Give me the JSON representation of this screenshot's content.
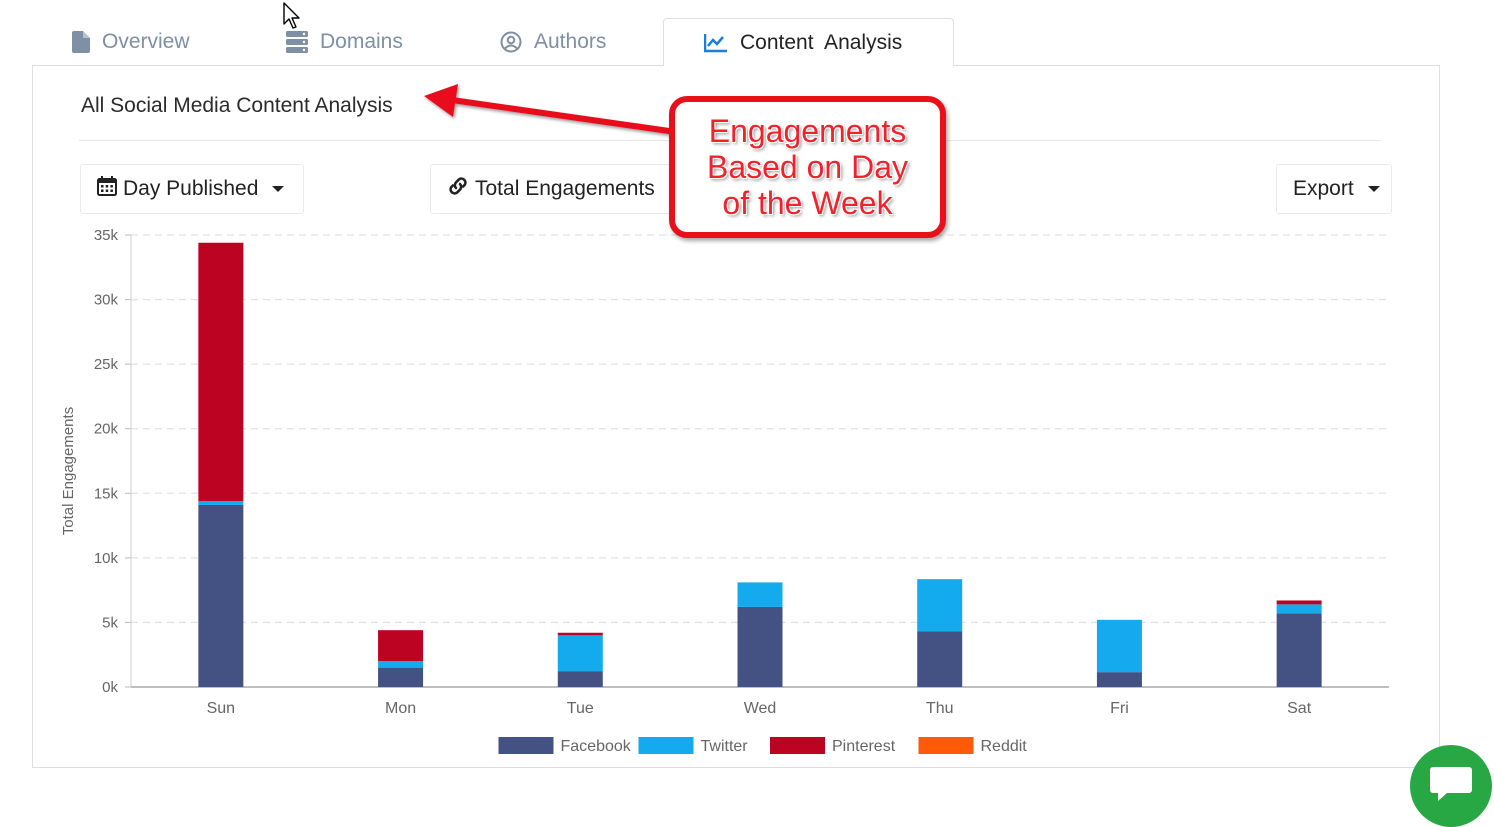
{
  "tabs": [
    {
      "label": "Overview",
      "icon": "file-icon",
      "active": false
    },
    {
      "label": "Domains",
      "icon": "server-icon",
      "active": false
    },
    {
      "label": "Authors",
      "icon": "user-circle-icon",
      "active": false
    },
    {
      "label": "Content  Analysis",
      "icon": "line-chart-icon",
      "active": true
    }
  ],
  "panel": {
    "title": "All Social Media Content Analysis",
    "group_by_button": "Day Published",
    "metric_button": "Total Engagements",
    "export_button": "Export"
  },
  "annotation": {
    "line1": "Engagements",
    "line2": "Based on Day",
    "line3": "of the Week",
    "color": "#e8101a"
  },
  "chart_data": {
    "type": "bar",
    "stacked": true,
    "categories": [
      "Sun",
      "Mon",
      "Tue",
      "Wed",
      "Thu",
      "Fri",
      "Sat"
    ],
    "series": [
      {
        "name": "Facebook",
        "color": "#435283",
        "values": [
          14100,
          1500,
          1200,
          6200,
          4300,
          1150,
          5700
        ]
      },
      {
        "name": "Twitter",
        "color": "#13aaee",
        "values": [
          300,
          500,
          2800,
          1900,
          4050,
          4050,
          700
        ]
      },
      {
        "name": "Pinterest",
        "color": "#bd0322",
        "values": [
          20000,
          2400,
          200,
          0,
          0,
          0,
          300
        ]
      },
      {
        "name": "Reddit",
        "color": "#ff5a08",
        "values": [
          0,
          0,
          0,
          0,
          0,
          0,
          0
        ]
      }
    ],
    "ylabel": "Total Engagements",
    "ylim": [
      0,
      35000
    ],
    "yticks": [
      "0k",
      "5k",
      "10k",
      "15k",
      "20k",
      "25k",
      "30k",
      "35k"
    ],
    "grid": true,
    "legend": "bottom"
  },
  "chat": {
    "icon": "chat-icon",
    "color": "#27a844"
  }
}
